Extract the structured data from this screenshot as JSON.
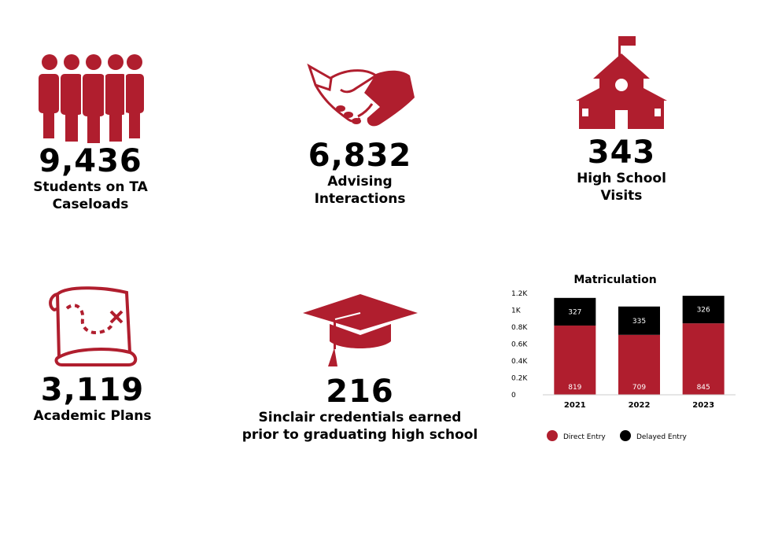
{
  "colors": {
    "accent": "#b01e2e",
    "dark": "#000000"
  },
  "stats": [
    {
      "icon": "people-group-icon",
      "value": "9,436",
      "label_lines": [
        "Students on TA",
        "Caseloads"
      ]
    },
    {
      "icon": "handshake-icon",
      "value": "6,832",
      "label_lines": [
        "Advising",
        "Interactions"
      ]
    },
    {
      "icon": "schoolhouse-icon",
      "value": "343",
      "label_lines": [
        "High School",
        "Visits"
      ]
    },
    {
      "icon": "treasure-map-icon",
      "value": "3,119",
      "label_lines": [
        "Academic Plans"
      ]
    },
    {
      "icon": "graduation-cap-icon",
      "value": "216",
      "label_lines": [
        "Sinclair credentials earned",
        "prior to graduating high school"
      ]
    }
  ],
  "chart_data": {
    "type": "bar",
    "stacked": true,
    "title": "Matriculation",
    "categories": [
      "2021",
      "2022",
      "2023"
    ],
    "series": [
      {
        "name": "Direct Entry",
        "color": "#b01e2e",
        "values": [
          819,
          709,
          845
        ]
      },
      {
        "name": "Delayed Entry",
        "color": "#000000",
        "values": [
          327,
          335,
          326
        ]
      }
    ],
    "ylim": [
      0,
      1200
    ],
    "yticks": [
      0,
      200,
      400,
      600,
      800,
      1000,
      1200
    ],
    "ytick_labels": [
      "0",
      "0.2K",
      "0.4K",
      "0.6K",
      "0.8K",
      "1K",
      "1.2K"
    ],
    "grid": false,
    "legend_position": "bottom"
  }
}
